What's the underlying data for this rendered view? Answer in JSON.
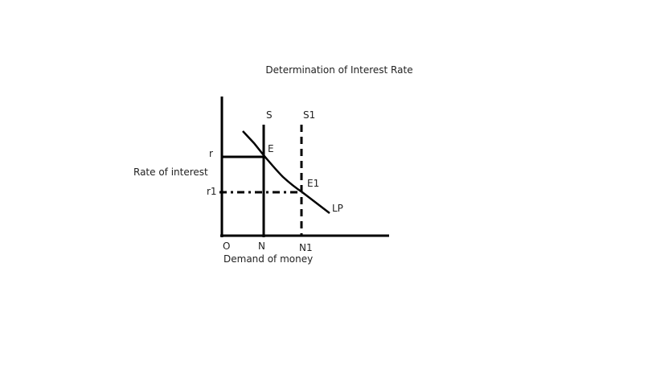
{
  "title": "Determination of Interest Rate",
  "axes": {
    "y_label": "Rate of interest",
    "x_label": "Demand of money",
    "origin_label": "O"
  },
  "interest_rates": {
    "r": "r",
    "r1": "r1"
  },
  "money_quantities": {
    "n": "N",
    "n1": "N1"
  },
  "curves": {
    "supply": "S",
    "supply_new": "S1",
    "liquidity_preference": "LP"
  },
  "equilibria": {
    "e": "E",
    "e1": "E1"
  },
  "colors": {
    "line": "#000000",
    "text": "#222222"
  }
}
